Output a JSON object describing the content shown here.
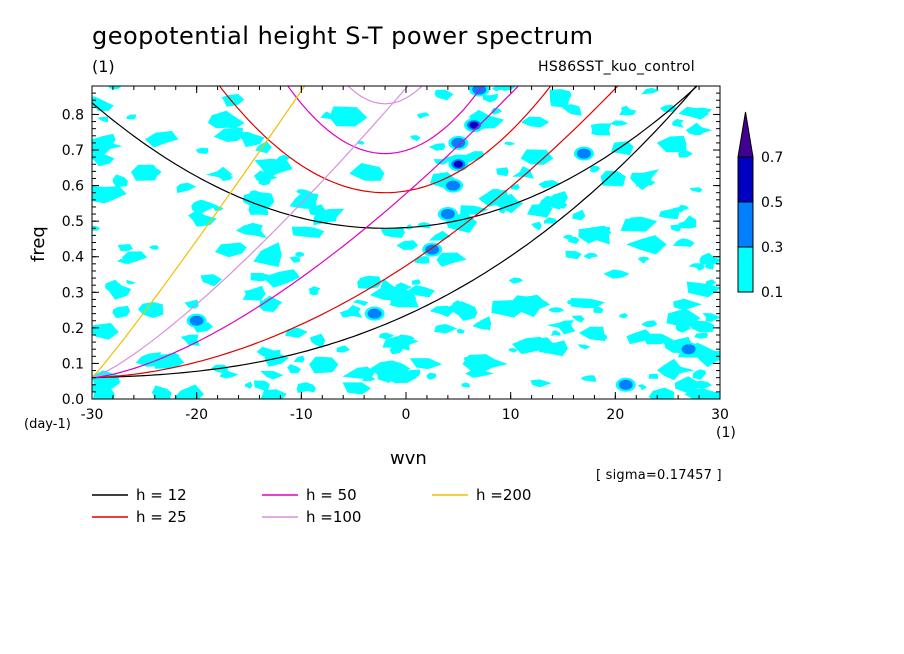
{
  "header": {
    "title": "geopotential height S-T power spectrum",
    "subtitle_left": "(1)",
    "subtitle_right": "HS86SST_kuo_control"
  },
  "annotation": "[ sigma=0.17457 ]",
  "colors": {
    "shade_low": "#00ffff",
    "shade_mid": "#0080ff",
    "shade_high": "#0000c0",
    "shade_top": "#400090"
  },
  "chart_data": {
    "type": "heatmap",
    "xlabel": "wvn",
    "ylabel": "freq",
    "x_unit": "(1)",
    "y_unit": "(day-1)",
    "xlim": [
      -30,
      30
    ],
    "ylim": [
      0,
      0.88
    ],
    "x_ticks": [
      "-30",
      "-20",
      "-10",
      "0",
      "10",
      "20",
      "30"
    ],
    "y_ticks": [
      "0.0",
      "0.1",
      "0.2",
      "0.3",
      "0.4",
      "0.5",
      "0.6",
      "0.7",
      "0.8"
    ],
    "colorbar": {
      "levels": [
        "0.1",
        "0.3",
        "0.5",
        "0.7"
      ],
      "colors": [
        "#00ffff",
        "#0080ff",
        "#0000c0",
        "#400090"
      ]
    },
    "curves": [
      {
        "name": "h = 12",
        "h": 12,
        "color": "#000000"
      },
      {
        "name": "h = 25",
        "h": 25,
        "color": "#e00000"
      },
      {
        "name": "h = 50",
        "h": 50,
        "color": "#e000c0"
      },
      {
        "name": "h =100",
        "h": 100,
        "color": "#d890e0"
      },
      {
        "name": "h =200",
        "h": 200,
        "color": "#f0c000"
      }
    ],
    "peaks": [
      {
        "wvn": 6.5,
        "freq": 0.77,
        "level": 0.7
      },
      {
        "wvn": 5.0,
        "freq": 0.66,
        "level": 0.7
      },
      {
        "wvn": 4.5,
        "freq": 0.6,
        "level": 0.5
      },
      {
        "wvn": 5.0,
        "freq": 0.72,
        "level": 0.5
      },
      {
        "wvn": 7.0,
        "freq": 0.87,
        "level": 0.5
      },
      {
        "wvn": 4.0,
        "freq": 0.52,
        "level": 0.5
      },
      {
        "wvn": 2.5,
        "freq": 0.42,
        "level": 0.5
      },
      {
        "wvn": -3.0,
        "freq": 0.24,
        "level": 0.5
      },
      {
        "wvn": 27.0,
        "freq": 0.14,
        "level": 0.5
      },
      {
        "wvn": 21.0,
        "freq": 0.04,
        "level": 0.3
      },
      {
        "wvn": 17.0,
        "freq": 0.69,
        "level": 0.3
      },
      {
        "wvn": -20.0,
        "freq": 0.22,
        "level": 0.3
      }
    ]
  }
}
